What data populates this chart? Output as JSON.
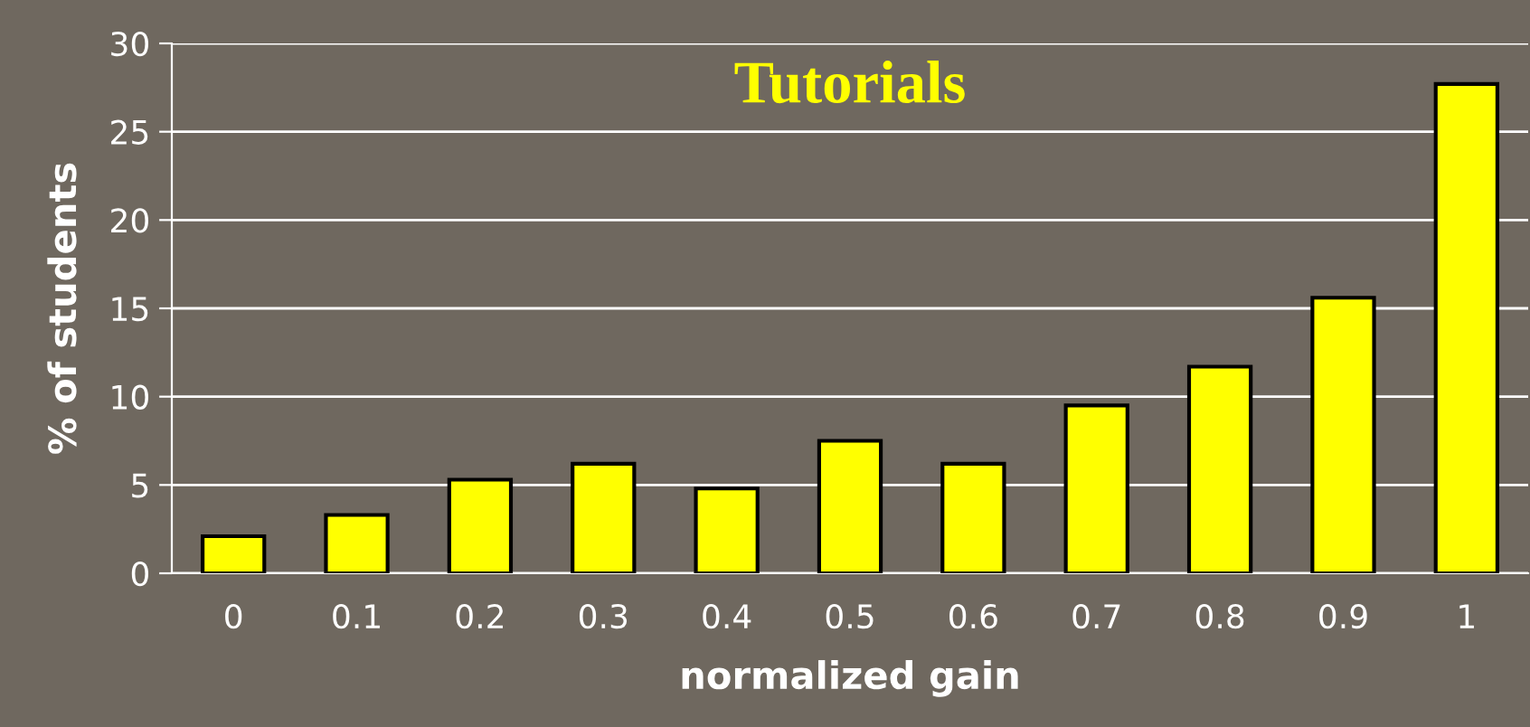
{
  "chart_data": {
    "type": "bar",
    "title": "Tutorials",
    "xlabel": "normalized gain",
    "ylabel": "% of students",
    "categories": [
      "0",
      "0.1",
      "0.2",
      "0.3",
      "0.4",
      "0.5",
      "0.6",
      "0.7",
      "0.8",
      "0.9",
      "1"
    ],
    "values": [
      2.1,
      3.3,
      5.3,
      6.2,
      4.8,
      7.5,
      6.2,
      9.5,
      11.7,
      15.6,
      27.7
    ],
    "color": "#ffff00",
    "ylim": [
      0,
      30
    ],
    "yticks": [
      0,
      5,
      10,
      15,
      20,
      25,
      30
    ],
    "grid": "y"
  }
}
